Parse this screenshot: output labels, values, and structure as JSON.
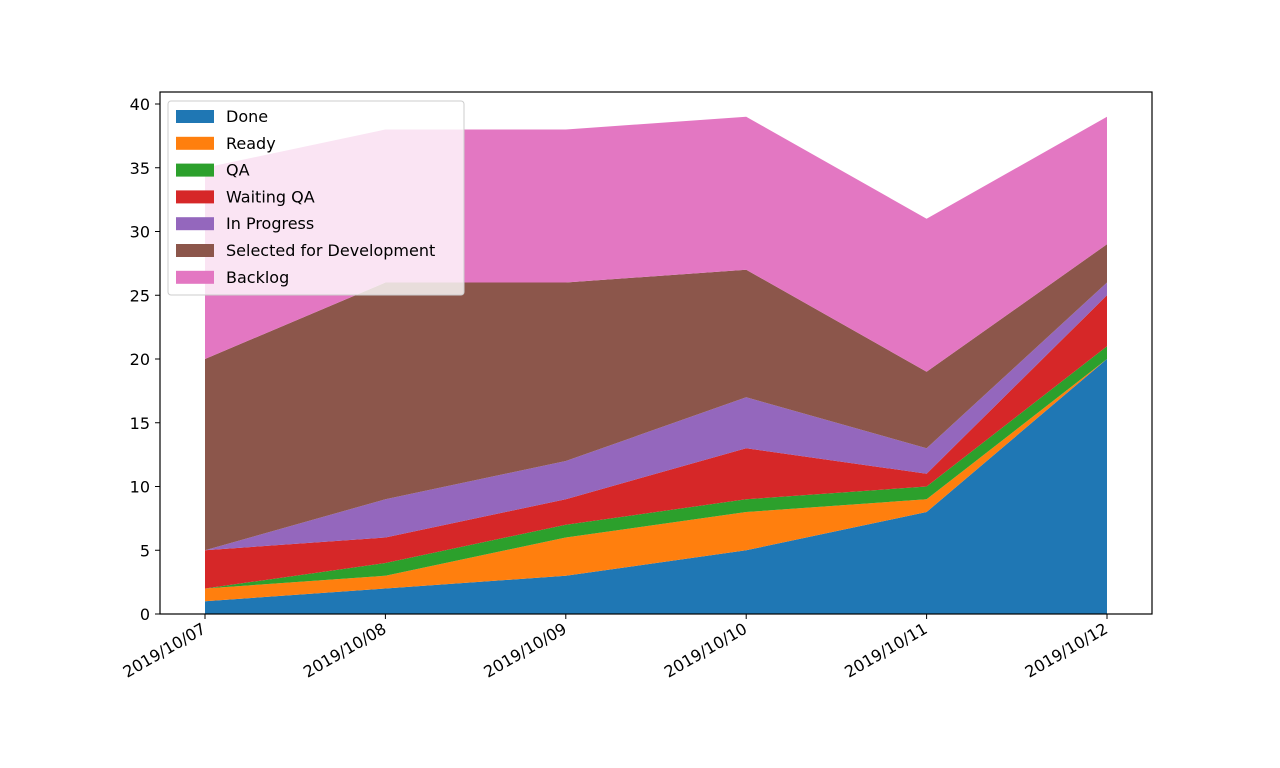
{
  "chart_data": {
    "type": "area",
    "stacked": true,
    "title": "",
    "xlabel": "",
    "ylabel": "",
    "x": [
      "2019/10/07",
      "2019/10/08",
      "2019/10/09",
      "2019/10/10",
      "2019/10/11",
      "2019/10/12"
    ],
    "ylim": [
      0,
      40
    ],
    "yticks": [
      0,
      5,
      10,
      15,
      20,
      25,
      30,
      35,
      40
    ],
    "grid": false,
    "legend_position": "top-left",
    "series": [
      {
        "name": "Done",
        "color": "#1f77b4",
        "values": [
          1,
          2,
          3,
          5,
          8,
          20
        ]
      },
      {
        "name": "Ready",
        "color": "#ff7f0e",
        "values": [
          1,
          1,
          3,
          3,
          1,
          0
        ]
      },
      {
        "name": "QA",
        "color": "#2ca02c",
        "values": [
          0,
          1,
          1,
          1,
          1,
          1
        ]
      },
      {
        "name": "Waiting QA",
        "color": "#d62728",
        "values": [
          3,
          2,
          2,
          4,
          1,
          4
        ]
      },
      {
        "name": "In Progress",
        "color": "#9467bd",
        "values": [
          0,
          3,
          3,
          4,
          2,
          1
        ]
      },
      {
        "name": "Selected for Development",
        "color": "#8c564b",
        "values": [
          15,
          17,
          14,
          10,
          6,
          3
        ]
      },
      {
        "name": "Backlog",
        "color": "#e377c2",
        "values": [
          15,
          12,
          12,
          12,
          12,
          10
        ]
      }
    ]
  }
}
